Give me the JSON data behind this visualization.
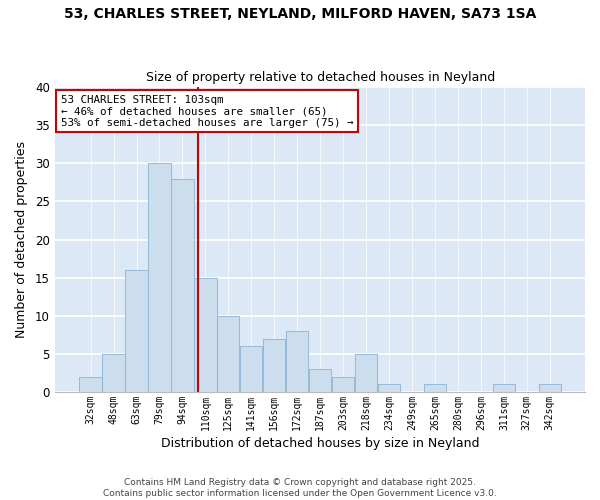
{
  "title": "53, CHARLES STREET, NEYLAND, MILFORD HAVEN, SA73 1SA",
  "subtitle": "Size of property relative to detached houses in Neyland",
  "xlabel": "Distribution of detached houses by size in Neyland",
  "ylabel": "Number of detached properties",
  "footer_line1": "Contains HM Land Registry data © Crown copyright and database right 2025.",
  "footer_line2": "Contains public sector information licensed under the Open Government Licence v3.0.",
  "bin_labels": [
    "32sqm",
    "48sqm",
    "63sqm",
    "79sqm",
    "94sqm",
    "110sqm",
    "125sqm",
    "141sqm",
    "156sqm",
    "172sqm",
    "187sqm",
    "203sqm",
    "218sqm",
    "234sqm",
    "249sqm",
    "265sqm",
    "280sqm",
    "296sqm",
    "311sqm",
    "327sqm",
    "342sqm"
  ],
  "bar_values": [
    2,
    5,
    16,
    30,
    28,
    15,
    10,
    6,
    7,
    8,
    3,
    2,
    5,
    1,
    0,
    1,
    0,
    0,
    1,
    0,
    1
  ],
  "bar_color": "#ccdded",
  "bar_edgecolor": "#8ab4d4",
  "ylim": [
    0,
    40
  ],
  "yticks": [
    0,
    5,
    10,
    15,
    20,
    25,
    30,
    35,
    40
  ],
  "vline_x": 4.67,
  "vline_color": "#cc0000",
  "annotation_title": "53 CHARLES STREET: 103sqm",
  "annotation_line2": "← 46% of detached houses are smaller (65)",
  "annotation_line3": "53% of semi-detached houses are larger (75) →",
  "annotation_box_facecolor": "#ffffff",
  "annotation_box_edgecolor": "#cc0000",
  "plot_bg_color": "#dce8f5",
  "figure_bg_color": "#ffffff",
  "grid_color": "#ffffff",
  "title_fontsize": 10,
  "subtitle_fontsize": 9
}
